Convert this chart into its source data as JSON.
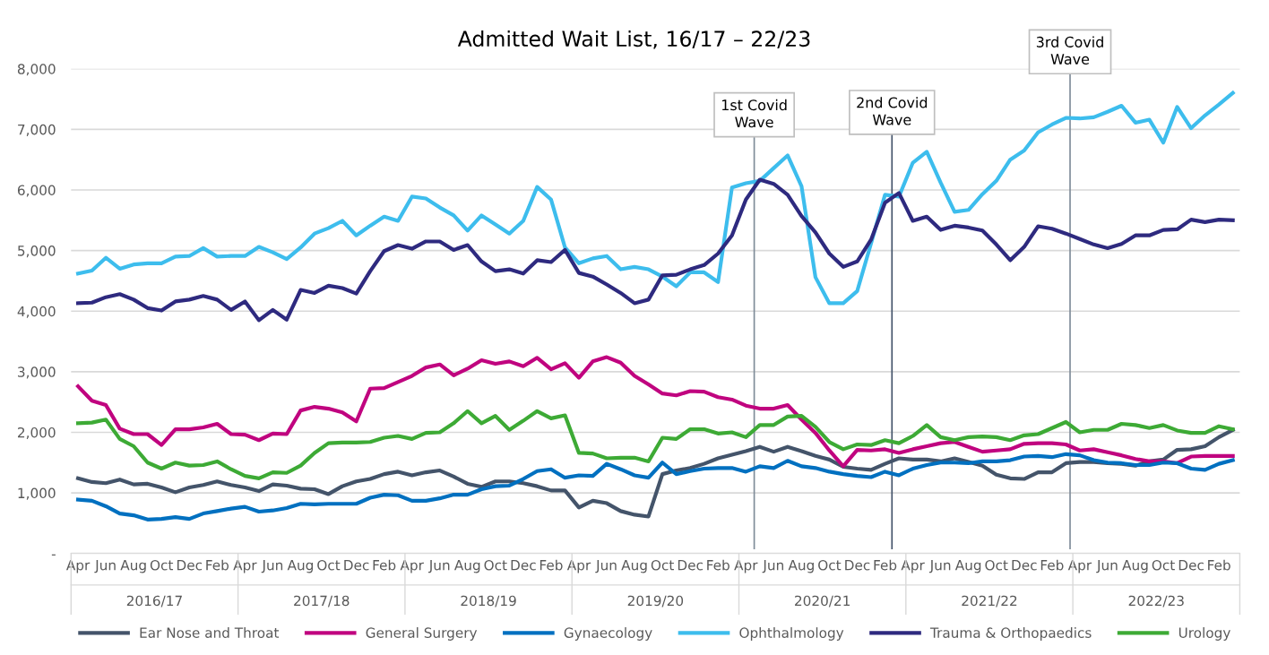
{
  "chart_data": {
    "type": "line",
    "title": "Admitted Wait List, 16/17 – 22/23",
    "categories": [
      "Apr",
      null,
      "Jun",
      null,
      "Aug",
      null,
      "Oct",
      null,
      "Dec",
      null,
      "Feb",
      null,
      "Apr",
      null,
      "Jun",
      null,
      "Aug",
      null,
      "Oct",
      null,
      "Dec",
      null,
      "Feb",
      null,
      "Apr",
      null,
      "Jun",
      null,
      "Aug",
      null,
      "Oct",
      null,
      "Dec",
      null,
      "Feb",
      null,
      "Apr",
      null,
      "Jun",
      null,
      "Aug",
      null,
      "Oct",
      null,
      "Dec",
      null,
      "Feb",
      null,
      "Apr",
      null,
      "Jun",
      null,
      "Aug",
      null,
      "Oct",
      null,
      "Dec",
      null,
      "Feb",
      null,
      "Apr",
      null,
      "Jun",
      null,
      "Aug",
      null,
      "Oct",
      null,
      "Dec",
      null,
      "Feb",
      null,
      "Apr",
      null,
      "Jun",
      null,
      "Aug",
      null,
      "Oct",
      null,
      "Dec",
      null,
      "Feb",
      null
    ],
    "series": [
      {
        "name": "Ear Nose and Throat",
        "color": "#44546a",
        "values": [
          1240,
          1180,
          1160,
          1220,
          1140,
          1150,
          1090,
          1010,
          1090,
          1130,
          1190,
          1130,
          1090,
          1030,
          1140,
          1120,
          1070,
          1060,
          980,
          1110,
          1190,
          1230,
          1310,
          1350,
          1290,
          1340,
          1370,
          1270,
          1150,
          1100,
          1190,
          1190,
          1160,
          1110,
          1040,
          1040,
          760,
          870,
          830,
          700,
          640,
          610,
          1310,
          1370,
          1410,
          1480,
          1570,
          1630,
          1690,
          1760,
          1680,
          1760,
          1690,
          1610,
          1550,
          1430,
          1400,
          1380,
          1480,
          1570,
          1550,
          1550,
          1520,
          1570,
          1510,
          1450,
          1300,
          1240,
          1230,
          1340,
          1340,
          1490,
          1510,
          1510,
          1490,
          1480,
          1450,
          1520,
          1550,
          1710,
          1720,
          1770,
          1920,
          2040
        ]
      },
      {
        "name": "General Surgery",
        "color": "#c0047f",
        "values": [
          2760,
          2520,
          2450,
          2060,
          1970,
          1970,
          1790,
          2050,
          2050,
          2080,
          2140,
          1970,
          1960,
          1870,
          1980,
          1970,
          2360,
          2420,
          2390,
          2330,
          2180,
          2720,
          2730,
          2830,
          2930,
          3070,
          3120,
          2940,
          3050,
          3190,
          3130,
          3170,
          3090,
          3230,
          3040,
          3140,
          2900,
          3170,
          3240,
          3150,
          2930,
          2790,
          2640,
          2610,
          2680,
          2670,
          2580,
          2540,
          2440,
          2390,
          2390,
          2450,
          2210,
          1990,
          1700,
          1440,
          1710,
          1700,
          1720,
          1660,
          1720,
          1770,
          1820,
          1840,
          1760,
          1680,
          1700,
          1720,
          1810,
          1820,
          1820,
          1800,
          1700,
          1720,
          1670,
          1620,
          1560,
          1520,
          1520,
          1490,
          1600,
          1610,
          1610,
          1610
        ]
      },
      {
        "name": "Gynaecology",
        "color": "#0070c0",
        "values": [
          890,
          870,
          780,
          660,
          630,
          560,
          570,
          600,
          570,
          660,
          700,
          740,
          770,
          690,
          710,
          750,
          820,
          810,
          820,
          820,
          820,
          920,
          970,
          960,
          870,
          870,
          910,
          970,
          970,
          1060,
          1110,
          1120,
          1230,
          1360,
          1390,
          1250,
          1290,
          1280,
          1480,
          1390,
          1290,
          1250,
          1500,
          1310,
          1360,
          1400,
          1410,
          1410,
          1350,
          1440,
          1410,
          1530,
          1440,
          1410,
          1350,
          1310,
          1280,
          1260,
          1350,
          1290,
          1400,
          1460,
          1500,
          1500,
          1490,
          1520,
          1520,
          1540,
          1600,
          1610,
          1590,
          1640,
          1620,
          1540,
          1500,
          1490,
          1460,
          1460,
          1500,
          1490,
          1400,
          1380,
          1480,
          1540
        ]
      },
      {
        "name": "Ophthalmology",
        "color": "#3dbded",
        "values": [
          4620,
          4670,
          4880,
          4700,
          4770,
          4790,
          4790,
          4900,
          4910,
          5040,
          4900,
          4910,
          4910,
          5060,
          4970,
          4860,
          5050,
          5280,
          5370,
          5490,
          5250,
          5410,
          5560,
          5490,
          5890,
          5860,
          5710,
          5580,
          5330,
          5580,
          5430,
          5280,
          5490,
          6050,
          5840,
          5050,
          4790,
          4870,
          4910,
          4690,
          4730,
          4690,
          4570,
          4410,
          4640,
          4640,
          4480,
          6040,
          6110,
          6150,
          6360,
          6570,
          6060,
          4560,
          4130,
          4130,
          4330,
          5120,
          5920,
          5890,
          6450,
          6630,
          6120,
          5640,
          5670,
          5930,
          6150,
          6500,
          6650,
          6950,
          7080,
          7190,
          7180,
          7200,
          7290,
          7390,
          7110,
          7160,
          6780,
          7370,
          7020,
          7230,
          7410,
          7600
        ]
      },
      {
        "name": "Trauma & Orthopaedics",
        "color": "#2e2a7f",
        "values": [
          4130,
          4140,
          4230,
          4280,
          4190,
          4050,
          4010,
          4160,
          4190,
          4250,
          4190,
          4020,
          4160,
          3850,
          4020,
          3860,
          4350,
          4300,
          4420,
          4380,
          4290,
          4660,
          4990,
          5090,
          5030,
          5150,
          5150,
          5010,
          5090,
          4820,
          4660,
          4690,
          4620,
          4840,
          4810,
          5010,
          4630,
          4570,
          4440,
          4300,
          4130,
          4190,
          4590,
          4600,
          4690,
          4760,
          4950,
          5250,
          5840,
          6170,
          6100,
          5920,
          5570,
          5300,
          4950,
          4730,
          4820,
          5180,
          5790,
          5950,
          5490,
          5560,
          5340,
          5410,
          5380,
          5330,
          5100,
          4840,
          5060,
          5400,
          5360,
          5280,
          5190,
          5100,
          5040,
          5110,
          5250,
          5250,
          5340,
          5350,
          5510,
          5470,
          5510,
          5500
        ]
      },
      {
        "name": "Urology",
        "color": "#3daa35",
        "values": [
          2150,
          2160,
          2210,
          1890,
          1770,
          1500,
          1400,
          1500,
          1450,
          1460,
          1520,
          1390,
          1280,
          1240,
          1340,
          1330,
          1450,
          1660,
          1820,
          1830,
          1830,
          1840,
          1910,
          1940,
          1890,
          1990,
          2000,
          2150,
          2350,
          2150,
          2270,
          2040,
          2190,
          2350,
          2230,
          2280,
          1660,
          1650,
          1570,
          1580,
          1580,
          1520,
          1910,
          1890,
          2050,
          2050,
          1980,
          2000,
          1920,
          2120,
          2120,
          2260,
          2270,
          2090,
          1840,
          1720,
          1800,
          1790,
          1870,
          1820,
          1940,
          2120,
          1920,
          1870,
          1920,
          1930,
          1920,
          1870,
          1950,
          1970,
          2070,
          2170,
          2000,
          2040,
          2040,
          2140,
          2120,
          2070,
          2120,
          2030,
          1990,
          1990,
          2100,
          2050
        ]
      }
    ],
    "ylim": [
      0,
      8000
    ],
    "yticks": [
      {
        "value": 0,
        "label": "-"
      },
      {
        "value": 1000,
        "label": "1,000"
      },
      {
        "value": 2000,
        "label": "2,000"
      },
      {
        "value": 3000,
        "label": "3,000"
      },
      {
        "value": 4000,
        "label": "4,000"
      },
      {
        "value": 5000,
        "label": "5,000"
      },
      {
        "value": 6000,
        "label": "6,000"
      },
      {
        "value": 7000,
        "label": "7,000"
      },
      {
        "value": 8000,
        "label": "8,000"
      }
    ],
    "grid": "y",
    "legend": "bottom",
    "annotations": [
      "2016/17",
      "2017/18",
      "2018/19",
      "2019/20",
      "2020/21",
      "2021/22",
      "2022/23",
      "1st Covid\nWave",
      "2nd Covid\nWave",
      "3rd Covid\nWave"
    ]
  }
}
